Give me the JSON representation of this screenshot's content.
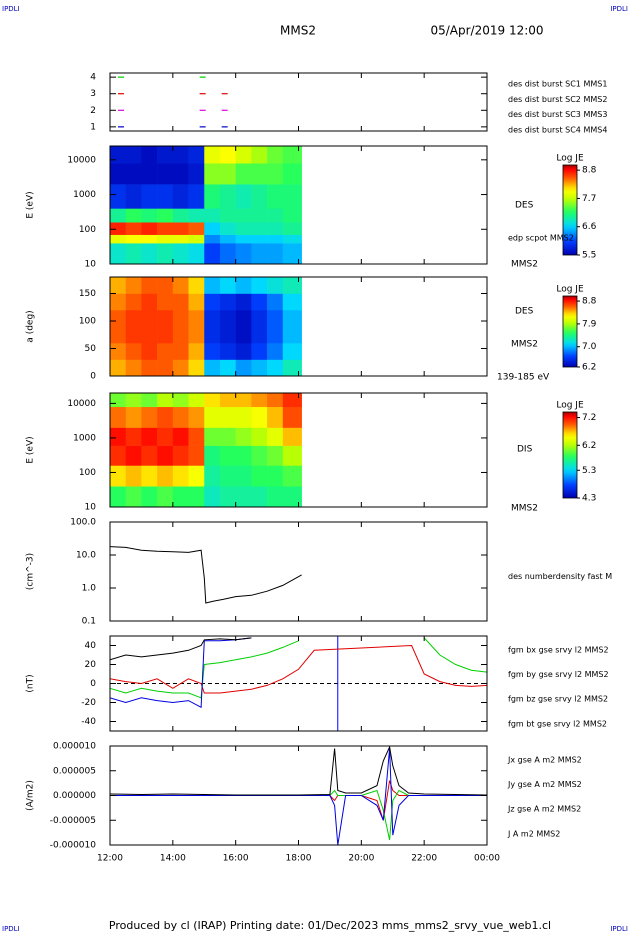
{
  "header": {
    "left_tag": "IPDLI",
    "right_tag": "IPDLI",
    "title": "MMS2",
    "date": "05/Apr/2019 12:00"
  },
  "footer": {
    "left_tag": "IPDLI",
    "right_tag": "IPDLI",
    "text": "Produced by cl (IRAP)   Printing date: 01/Dec/2023   mms_mms2_srvy_vue_web1.cl"
  },
  "chart_data": [
    {
      "type": "scatter",
      "xlim": [
        12,
        24
      ],
      "ylim": [
        0.75,
        4.25
      ],
      "yticks": [
        1,
        2,
        3,
        4
      ],
      "series": [
        {
          "name": "des dist burst SC1 MMS1",
          "color": "#0000cc",
          "x": [
            12.35,
            14.95,
            15.65
          ],
          "values": [
            1,
            1,
            1
          ]
        },
        {
          "name": "des dist burst SC2 MMS2",
          "color": "#dd00dd",
          "x": [
            12.35,
            14.95,
            15.65
          ],
          "values": [
            2,
            2,
            2
          ]
        },
        {
          "name": "des dist burst SC3 MMS3",
          "color": "#dd0000",
          "x": [
            12.35,
            14.95,
            15.65
          ],
          "values": [
            3,
            3,
            3
          ]
        },
        {
          "name": "des dist burst SC4 MMS4",
          "color": "#00cc00",
          "x": [
            12.35,
            14.95
          ],
          "values": [
            4,
            4
          ]
        }
      ]
    },
    {
      "type": "heatmap",
      "ylabel": "E (eV)",
      "log": true,
      "xlim": [
        12,
        24
      ],
      "ylim": [
        10,
        25000
      ],
      "yticks": [
        10,
        100,
        1000,
        10000
      ],
      "x_edges": [
        12,
        12.5,
        13,
        13.5,
        14,
        14.5,
        15,
        15.5,
        16,
        16.5,
        17,
        17.5,
        18.1
      ],
      "y_edges": [
        10,
        40,
        70,
        160,
        400,
        2000,
        8000,
        25000
      ],
      "z": [
        [
          6.8,
          6.9,
          6.8,
          6.9,
          6.8,
          6.7,
          6.0,
          6.2,
          6.3,
          6.4,
          6.4,
          6.5
        ],
        [
          7.9,
          8.0,
          8.0,
          7.9,
          7.9,
          7.8,
          6.3,
          6.5,
          6.6,
          6.6,
          6.6,
          6.7
        ],
        [
          8.7,
          8.6,
          8.7,
          8.6,
          8.6,
          8.5,
          6.6,
          6.8,
          6.9,
          6.9,
          6.9,
          7.0
        ],
        [
          7.0,
          7.2,
          7.1,
          7.2,
          7.0,
          6.9,
          6.9,
          7.0,
          7.0,
          7.0,
          7.0,
          7.1
        ],
        [
          5.9,
          5.8,
          5.9,
          5.9,
          5.8,
          5.9,
          7.1,
          7.0,
          6.9,
          7.0,
          7.1,
          7.1
        ],
        [
          5.6,
          5.6,
          5.6,
          5.6,
          5.6,
          5.7,
          7.5,
          7.5,
          7.3,
          7.3,
          7.3,
          7.2
        ],
        [
          5.7,
          5.7,
          5.6,
          5.7,
          5.7,
          5.8,
          7.9,
          8.0,
          7.8,
          7.6,
          7.4,
          7.3
        ]
      ],
      "colorbar_label": "Log JE",
      "clim": [
        5.5,
        9.0
      ],
      "cticks": [
        5.5,
        6.6,
        7.7,
        8.8
      ],
      "right_labels": [
        "DES",
        "MMS2",
        "edp scpot MMS2"
      ]
    },
    {
      "type": "heatmap",
      "ylabel": "a (deg)",
      "xlim": [
        12,
        24
      ],
      "ylim": [
        0,
        180
      ],
      "yticks": [
        0,
        50,
        100,
        150
      ],
      "x_edges": [
        12,
        12.5,
        13,
        13.5,
        14,
        14.5,
        15,
        15.5,
        16,
        16.5,
        17,
        17.5,
        18.1
      ],
      "y_edges": [
        0,
        30,
        60,
        90,
        120,
        150,
        180
      ],
      "z": [
        [
          8.4,
          8.5,
          8.6,
          8.6,
          8.5,
          8.3,
          7.0,
          7.1,
          6.9,
          7.0,
          7.1,
          7.3
        ],
        [
          8.5,
          8.6,
          8.7,
          8.6,
          8.6,
          8.4,
          6.6,
          6.5,
          6.4,
          6.6,
          6.8,
          7.1
        ],
        [
          8.6,
          8.7,
          8.7,
          8.7,
          8.6,
          8.5,
          6.5,
          6.4,
          6.3,
          6.5,
          6.7,
          7.0
        ],
        [
          8.6,
          8.7,
          8.7,
          8.7,
          8.6,
          8.5,
          6.5,
          6.4,
          6.3,
          6.5,
          6.7,
          7.0
        ],
        [
          8.5,
          8.6,
          8.7,
          8.6,
          8.6,
          8.4,
          6.6,
          6.5,
          6.4,
          6.6,
          6.8,
          7.1
        ],
        [
          8.4,
          8.5,
          8.6,
          8.6,
          8.5,
          8.3,
          7.0,
          7.1,
          7.0,
          7.1,
          7.2,
          7.3
        ]
      ],
      "colorbar_label": "Log JE",
      "clim": [
        6.2,
        9.0
      ],
      "cticks": [
        6.2,
        {
          "value": 7,
          "label": "7.0"
        },
        7.9,
        8.8
      ],
      "right_labels": [
        "DES",
        "MMS2",
        "139-185 eV"
      ]
    },
    {
      "type": "heatmap",
      "ylabel": "E (eV)",
      "log": true,
      "xlim": [
        12,
        24
      ],
      "ylim": [
        10,
        20000
      ],
      "yticks": [
        10,
        100,
        1000,
        10000
      ],
      "x_edges": [
        12,
        12.5,
        13,
        13.5,
        14,
        14.5,
        15,
        15.5,
        16,
        16.5,
        17,
        17.5,
        18.1
      ],
      "y_edges": [
        10,
        40,
        160,
        600,
        2000,
        8000,
        20000
      ],
      "z": [
        [
          5.8,
          5.9,
          5.8,
          5.9,
          5.8,
          5.8,
          5.5,
          5.6,
          5.6,
          5.6,
          5.7,
          5.7
        ],
        [
          6.6,
          6.7,
          6.6,
          6.7,
          6.6,
          6.5,
          5.6,
          5.7,
          5.7,
          5.8,
          5.8,
          5.9
        ],
        [
          7.1,
          7.2,
          7.1,
          7.2,
          7.1,
          7.0,
          5.7,
          5.8,
          5.8,
          5.9,
          6.0,
          6.2
        ],
        [
          7.2,
          7.1,
          7.2,
          7.1,
          7.2,
          7.0,
          6.0,
          6.0,
          6.1,
          6.2,
          6.4,
          6.7
        ],
        [
          6.9,
          6.8,
          6.9,
          7.0,
          6.9,
          6.8,
          6.4,
          6.4,
          6.4,
          6.5,
          6.7,
          7.0
        ],
        [
          6.0,
          6.1,
          6.0,
          6.2,
          6.1,
          6.3,
          6.6,
          6.7,
          6.7,
          6.8,
          6.9,
          7.1
        ]
      ],
      "colorbar_label": "Log JE",
      "clim": [
        4.3,
        7.4
      ],
      "cticks": [
        4.3,
        5.3,
        6.2,
        7.2
      ],
      "right_labels": [
        "DIS",
        "MMS2"
      ]
    },
    {
      "type": "line",
      "ylabel": "(cm^-3)",
      "log": true,
      "xlim": [
        12,
        24
      ],
      "ylim": [
        0.1,
        100
      ],
      "yticks": [
        0.1,
        {
          "value": 1,
          "label": "1.0"
        },
        {
          "value": 10,
          "label": "10.0"
        },
        {
          "value": 100,
          "label": "100.0"
        }
      ],
      "x": [
        12,
        12.5,
        13,
        13.5,
        14,
        14.5,
        14.9,
        15,
        15.05,
        15.3,
        15.6,
        16,
        16.5,
        17,
        17.5,
        18.1
      ],
      "series": [
        {
          "name": "des numberdensity fast M",
          "color": "#000000",
          "values": [
            18,
            17,
            14,
            13,
            12.5,
            12,
            14,
            2,
            0.35,
            0.4,
            0.45,
            0.55,
            0.6,
            0.8,
            1.2,
            2.5
          ]
        }
      ]
    },
    {
      "type": "line",
      "ylabel": "(nT)",
      "xlim": [
        12,
        24
      ],
      "ylim": [
        -50,
        50
      ],
      "yticks": [
        -40,
        -20,
        0,
        20,
        40
      ],
      "hline": 0,
      "vlines": [
        {
          "x": 19.25,
          "color": "#0000ff"
        }
      ],
      "x": [
        12,
        12.5,
        13,
        13.5,
        14,
        14.5,
        14.9,
        15,
        15.5,
        16,
        16.5,
        17,
        17.5,
        18,
        18.5,
        21.6,
        22,
        22.5,
        23,
        23.5,
        24
      ],
      "series": [
        {
          "name": "fgm bx gse srvy l2 MMS2",
          "color": "#e00000",
          "values": [
            5,
            2,
            0,
            5,
            -5,
            5,
            0,
            -10,
            -10,
            -8,
            -6,
            -2,
            5,
            15,
            35,
            40,
            10,
            2,
            -2,
            -3,
            -2
          ]
        },
        {
          "name": "fgm by gse srvy l2 MMS2",
          "color": "#00d000",
          "values": [
            -5,
            -10,
            -5,
            -8,
            -10,
            -10,
            -15,
            20,
            22,
            25,
            28,
            32,
            38,
            45,
            null,
            null,
            48,
            30,
            20,
            14,
            12
          ]
        },
        {
          "name": "fgm bz gse srvy l2 MMS2",
          "color": "#0000e0",
          "values": [
            -15,
            -20,
            -15,
            -18,
            -20,
            -18,
            -25,
            45,
            45,
            46,
            48,
            null,
            null,
            null,
            null,
            null,
            null,
            null,
            null,
            null,
            null
          ]
        },
        {
          "name": "fgm bt gse srvy l2 MMS2",
          "color": "#000000",
          "values": [
            25,
            30,
            28,
            30,
            32,
            35,
            40,
            46,
            47,
            46,
            48,
            null,
            null,
            null,
            null,
            null,
            null,
            null,
            null,
            null,
            null
          ]
        }
      ]
    },
    {
      "type": "line",
      "ylabel": "(A/m2)",
      "xlim": [
        12,
        24
      ],
      "ylim": [
        -1e-05,
        1e-05
      ],
      "yticks": [
        {
          "value": -1e-05,
          "label": "-0.000010"
        },
        {
          "value": -5e-06,
          "label": "-0.000005"
        },
        {
          "value": 0,
          "label": "0.000000"
        },
        {
          "value": 5e-06,
          "label": "0.000005"
        },
        {
          "value": 1e-05,
          "label": "0.000010"
        }
      ],
      "xticks": [
        {
          "value": 12,
          "label": "12:00"
        },
        {
          "value": 14,
          "label": "14:00"
        },
        {
          "value": 16,
          "label": "16:00"
        },
        {
          "value": 18,
          "label": "18:00"
        },
        {
          "value": 20,
          "label": "20:00"
        },
        {
          "value": 22,
          "label": "22:00"
        },
        {
          "value": 24,
          "label": "00:00"
        }
      ],
      "x": [
        12,
        13,
        14,
        15,
        16,
        17,
        18,
        19,
        19.15,
        19.25,
        19.5,
        20,
        20.5,
        20.7,
        20.9,
        21.0,
        21.2,
        21.5,
        22,
        23,
        24
      ],
      "series": [
        {
          "name": "Jx gse A m2 MMS2",
          "color": "#e00000",
          "values": [
            0,
            0,
            0,
            0,
            0,
            0,
            0,
            0,
            -1e-06,
            0,
            0,
            0,
            -1e-06,
            -5e-06,
            3e-06,
            1e-06,
            0,
            0,
            0,
            0,
            0
          ]
        },
        {
          "name": "Jy gse A m2 MMS2",
          "color": "#00d000",
          "values": [
            0,
            0,
            0,
            0,
            0,
            0,
            0,
            0,
            1e-06,
            0,
            0,
            0,
            1e-06,
            -3e-06,
            -9e-06,
            -1e-06,
            1e-06,
            0,
            0,
            0,
            0
          ]
        },
        {
          "name": "Jz gse A m2 MMS2",
          "color": "#0000e0",
          "values": [
            0,
            0,
            0,
            0,
            0,
            0,
            0,
            0,
            -2e-06,
            -1e-05,
            0,
            0,
            -2e-06,
            -5e-06,
            9.5e-06,
            -8e-06,
            -2e-06,
            0,
            0,
            0,
            0
          ]
        },
        {
          "name": "J  A m2 MMS2",
          "color": "#000000",
          "values": [
            3e-07,
            2e-07,
            3e-07,
            2e-07,
            1e-07,
            1e-07,
            1e-07,
            2e-07,
            9.5e-06,
            1e-06,
            5e-07,
            5e-07,
            2e-06,
            7e-06,
            9.8e-06,
            6e-06,
            2e-06,
            5e-07,
            3e-07,
            2e-07,
            1e-07
          ]
        }
      ]
    }
  ]
}
